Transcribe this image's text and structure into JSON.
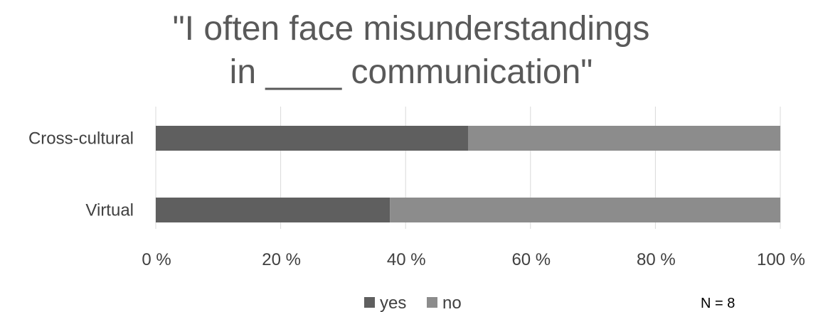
{
  "chart_data": {
    "type": "bar",
    "orientation": "horizontal",
    "stacked": "percent",
    "title_lines": [
      "\"I often face misunderstandings",
      "in ____ communication\""
    ],
    "categories": [
      "Cross-cultural",
      "Virtual"
    ],
    "series": [
      {
        "name": "yes",
        "values": [
          50,
          37.5
        ],
        "color": "#5f5f5f"
      },
      {
        "name": "no",
        "values": [
          50,
          62.5
        ],
        "color": "#8c8c8c"
      }
    ],
    "xlim": [
      0,
      100
    ],
    "x_ticks": [
      "0 %",
      "20 %",
      "40 %",
      "60 %",
      "80 %",
      "100 %"
    ],
    "grid": "vertical",
    "legend_position": "bottom",
    "annotation": "N = 8"
  }
}
